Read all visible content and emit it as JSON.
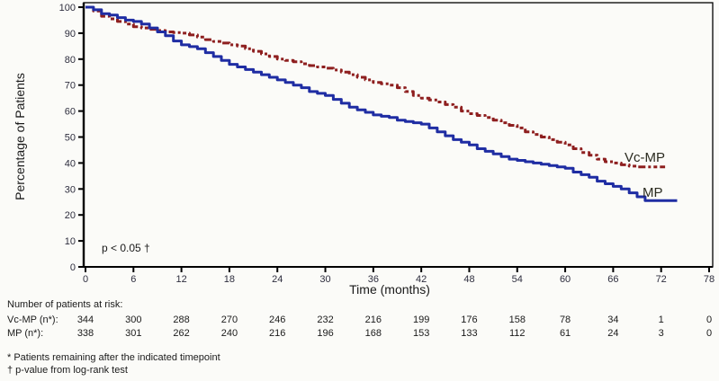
{
  "chart_data": {
    "type": "line",
    "subtype": "kaplan-meier-step",
    "title": "",
    "xlabel": "Time (months)",
    "ylabel": "Percentage of Patients",
    "xlim": [
      0,
      78
    ],
    "ylim": [
      0,
      100
    ],
    "xticks": [
      0,
      6,
      12,
      18,
      24,
      30,
      36,
      42,
      48,
      54,
      60,
      66,
      72,
      78
    ],
    "yticks": [
      0,
      10,
      20,
      30,
      40,
      50,
      60,
      70,
      80,
      90,
      100
    ],
    "grid": false,
    "annotation": "p < 0.05 †",
    "legend_position": "inline-right",
    "series": [
      {
        "name": "Vc-MP",
        "color": "#8e1f1f",
        "style": "dash-dot",
        "points": [
          [
            0,
            100
          ],
          [
            1,
            98.5
          ],
          [
            2,
            96.5
          ],
          [
            3,
            95.5
          ],
          [
            4,
            94.5
          ],
          [
            5,
            93.5
          ],
          [
            6,
            92.5
          ],
          [
            7,
            92
          ],
          [
            8,
            91.5
          ],
          [
            9,
            91
          ],
          [
            10,
            90.5
          ],
          [
            11,
            90.2
          ],
          [
            12,
            90
          ],
          [
            13,
            89.3
          ],
          [
            14,
            88.5
          ],
          [
            15,
            87.5
          ],
          [
            16,
            86.8
          ],
          [
            17,
            86.2
          ],
          [
            18,
            85.5
          ],
          [
            19,
            85
          ],
          [
            20,
            84
          ],
          [
            21,
            83
          ],
          [
            22,
            82
          ],
          [
            23,
            81
          ],
          [
            24,
            80
          ],
          [
            25,
            79.5
          ],
          [
            26,
            79
          ],
          [
            27,
            78.2
          ],
          [
            28,
            77.5
          ],
          [
            29,
            77
          ],
          [
            30,
            76.5
          ],
          [
            31,
            75.8
          ],
          [
            32,
            75
          ],
          [
            33,
            74
          ],
          [
            34,
            73
          ],
          [
            35,
            72
          ],
          [
            36,
            71
          ],
          [
            37,
            70.5
          ],
          [
            38,
            70
          ],
          [
            39,
            69
          ],
          [
            40,
            67.5
          ],
          [
            41,
            66
          ],
          [
            42,
            65
          ],
          [
            43,
            64.3
          ],
          [
            44,
            63.5
          ],
          [
            45,
            62.5
          ],
          [
            46,
            61.5
          ],
          [
            47,
            60
          ],
          [
            48,
            59
          ],
          [
            49,
            58.3
          ],
          [
            50,
            57.5
          ],
          [
            51,
            56.5
          ],
          [
            52,
            55.5
          ],
          [
            53,
            54.5
          ],
          [
            54,
            53.5
          ],
          [
            55,
            52
          ],
          [
            56,
            51
          ],
          [
            57,
            50
          ],
          [
            58,
            49
          ],
          [
            59,
            48
          ],
          [
            60,
            47
          ],
          [
            61,
            45.5
          ],
          [
            62,
            44
          ],
          [
            63,
            43
          ],
          [
            64,
            41.5
          ],
          [
            65,
            40.5
          ],
          [
            66,
            40
          ],
          [
            67,
            39.3
          ],
          [
            68,
            38.8
          ],
          [
            69,
            38.5
          ],
          [
            72.5,
            38.5
          ]
        ]
      },
      {
        "name": "MP",
        "color": "#1f2da3",
        "style": "solid",
        "points": [
          [
            0,
            100
          ],
          [
            1,
            99
          ],
          [
            2,
            97.5
          ],
          [
            3,
            97
          ],
          [
            4,
            96
          ],
          [
            5,
            95
          ],
          [
            6,
            94.5
          ],
          [
            7,
            93.5
          ],
          [
            8,
            92
          ],
          [
            9,
            90.5
          ],
          [
            10,
            89
          ],
          [
            11,
            87
          ],
          [
            12,
            85.5
          ],
          [
            13,
            84.8
          ],
          [
            14,
            84
          ],
          [
            15,
            82.5
          ],
          [
            16,
            81
          ],
          [
            17,
            79.5
          ],
          [
            18,
            78
          ],
          [
            19,
            77
          ],
          [
            20,
            76
          ],
          [
            21,
            75
          ],
          [
            22,
            74
          ],
          [
            23,
            73
          ],
          [
            24,
            72
          ],
          [
            25,
            71
          ],
          [
            26,
            70
          ],
          [
            27,
            69
          ],
          [
            28,
            67.5
          ],
          [
            29,
            66.8
          ],
          [
            30,
            66
          ],
          [
            31,
            64.5
          ],
          [
            32,
            63
          ],
          [
            33,
            61.5
          ],
          [
            34,
            60.5
          ],
          [
            35,
            59.5
          ],
          [
            36,
            58.5
          ],
          [
            37,
            58
          ],
          [
            38,
            57.5
          ],
          [
            39,
            56.5
          ],
          [
            40,
            56
          ],
          [
            41,
            55.5
          ],
          [
            42,
            55
          ],
          [
            43,
            53.5
          ],
          [
            44,
            52
          ],
          [
            45,
            50.5
          ],
          [
            46,
            49
          ],
          [
            47,
            48
          ],
          [
            48,
            47
          ],
          [
            49,
            45.5
          ],
          [
            50,
            44.5
          ],
          [
            51,
            43.5
          ],
          [
            52,
            42.5
          ],
          [
            53,
            41.5
          ],
          [
            54,
            41
          ],
          [
            55,
            40.5
          ],
          [
            56,
            40
          ],
          [
            57,
            39.5
          ],
          [
            58,
            39
          ],
          [
            59,
            38.5
          ],
          [
            60,
            38
          ],
          [
            61,
            36.5
          ],
          [
            62,
            35.5
          ],
          [
            63,
            34.5
          ],
          [
            64,
            33
          ],
          [
            65,
            32
          ],
          [
            66,
            31
          ],
          [
            67,
            30
          ],
          [
            68,
            28.5
          ],
          [
            69,
            27
          ],
          [
            70,
            25.5
          ],
          [
            74,
            25.5
          ]
        ]
      }
    ]
  },
  "risk_table": {
    "header": "Number of patients at risk:",
    "rows": [
      {
        "label": "Vc-MP (n*):",
        "values": [
          344,
          300,
          288,
          270,
          246,
          232,
          216,
          199,
          176,
          158,
          78,
          34,
          1,
          0
        ]
      },
      {
        "label": "MP (n*):",
        "values": [
          338,
          301,
          262,
          240,
          216,
          196,
          168,
          153,
          133,
          112,
          61,
          24,
          3,
          0
        ]
      }
    ]
  },
  "footnotes": [
    "* Patients remaining after the indicated timepoint",
    "† p-value from log-rank test"
  ],
  "colors": {
    "vcmp": "#8e1f1f",
    "mp": "#1f2da3",
    "axis": "#000000",
    "text": "#1a1a1a",
    "background": "#fbfbf8"
  }
}
